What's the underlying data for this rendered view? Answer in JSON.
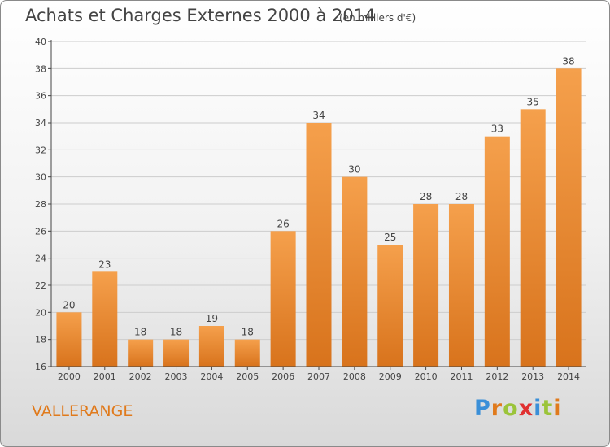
{
  "title": "Achats et Charges Externes 2000 à 2014",
  "unit_note": "(en milliers d'€)",
  "commune": "VALLERANGE",
  "logo": {
    "text": "Proxiti",
    "letter_colors": [
      "#3a8fd8",
      "#e07a1c",
      "#9bc43a",
      "#e03030",
      "#3a8fd8",
      "#9bc43a",
      "#e07a1c"
    ]
  },
  "colors": {
    "bar_top": "#f5a04c",
    "bar_bottom": "#d8731c",
    "axis": "#444444",
    "grid": "#cccccc"
  },
  "chart_data": {
    "type": "bar",
    "title": "Achats et Charges Externes 2000 à 2014",
    "categories": [
      "2000",
      "2001",
      "2002",
      "2003",
      "2004",
      "2005",
      "2006",
      "2007",
      "2008",
      "2009",
      "2010",
      "2011",
      "2012",
      "2013",
      "2014"
    ],
    "values": [
      20,
      23,
      18,
      18,
      19,
      18,
      26,
      34,
      30,
      25,
      28,
      28,
      33,
      35,
      38
    ],
    "ylim": [
      16,
      40
    ],
    "yticks": [
      16,
      18,
      20,
      22,
      24,
      26,
      28,
      30,
      32,
      34,
      36,
      38,
      40
    ],
    "grid": true
  }
}
